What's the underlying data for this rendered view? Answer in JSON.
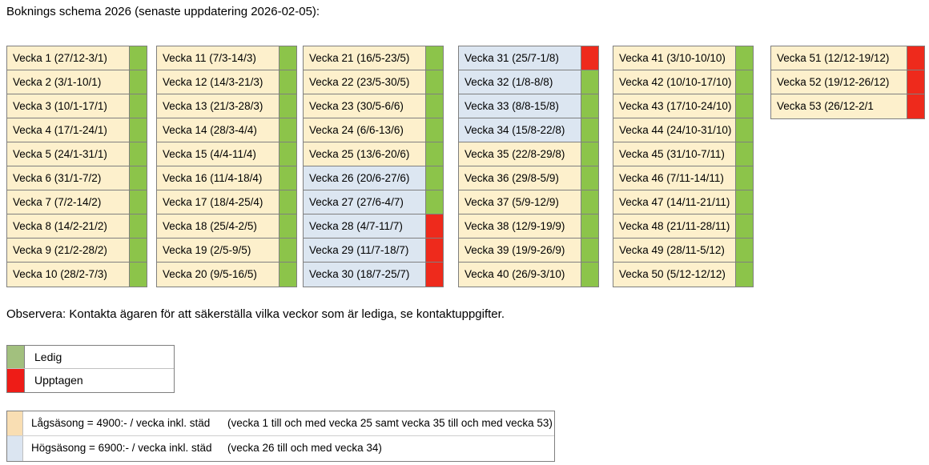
{
  "title": "Boknings schema 2026 (senaste uppdatering 2026-02-05):",
  "note": "Observera: Kontakta ägaren för att säkerställa vilka veckor som är lediga, se kontaktuppgifter.",
  "colors": {
    "ledig": "#8cc44a",
    "upptagen": "#ee2a1c",
    "lagsasong_cell": "#fdf0cc",
    "hogsasong_cell": "#dce6f1",
    "legend_ledig_swatch": "#a2c07e",
    "legend_upptagen_swatch": "#ee1c17",
    "lagsasong_swatch": "#f9deb3",
    "hogsasong_swatch": "#dbe5f1",
    "border_gray": "#7f7f7f"
  },
  "schedule": {
    "columns": [
      {
        "weeks": [
          {
            "label": "Vecka 1 (27/12-3/1)",
            "season": "lag",
            "status": "ledig"
          },
          {
            "label": "Vecka 2 (3/1-10/1)",
            "season": "lag",
            "status": "ledig"
          },
          {
            "label": "Vecka 3 (10/1-17/1)",
            "season": "lag",
            "status": "ledig"
          },
          {
            "label": "Vecka 4 (17/1-24/1)",
            "season": "lag",
            "status": "ledig"
          },
          {
            "label": "Vecka 5 (24/1-31/1)",
            "season": "lag",
            "status": "ledig"
          },
          {
            "label": "Vecka 6 (31/1-7/2)",
            "season": "lag",
            "status": "ledig"
          },
          {
            "label": "Vecka 7 (7/2-14/2)",
            "season": "lag",
            "status": "ledig"
          },
          {
            "label": "Vecka 8 (14/2-21/2)",
            "season": "lag",
            "status": "ledig"
          },
          {
            "label": "Vecka 9 (21/2-28/2)",
            "season": "lag",
            "status": "ledig"
          },
          {
            "label": "Vecka 10 (28/2-7/3)",
            "season": "lag",
            "status": "ledig"
          }
        ]
      },
      {
        "weeks": [
          {
            "label": "Vecka 11 (7/3-14/3)",
            "season": "lag",
            "status": "ledig"
          },
          {
            "label": "Vecka 12 (14/3-21/3)",
            "season": "lag",
            "status": "ledig"
          },
          {
            "label": "Vecka 13 (21/3-28/3)",
            "season": "lag",
            "status": "ledig"
          },
          {
            "label": "Vecka 14 (28/3-4/4)",
            "season": "lag",
            "status": "ledig"
          },
          {
            "label": "Vecka 15 (4/4-11/4)",
            "season": "lag",
            "status": "ledig"
          },
          {
            "label": "Vecka 16 (11/4-18/4)",
            "season": "lag",
            "status": "ledig"
          },
          {
            "label": "Vecka 17 (18/4-25/4)",
            "season": "lag",
            "status": "ledig"
          },
          {
            "label": "Vecka 18 (25/4-2/5)",
            "season": "lag",
            "status": "ledig"
          },
          {
            "label": "Vecka 19 (2/5-9/5)",
            "season": "lag",
            "status": "ledig"
          },
          {
            "label": "Vecka 20 (9/5-16/5)",
            "season": "lag",
            "status": "ledig"
          }
        ]
      },
      {
        "weeks": [
          {
            "label": "Vecka 21 (16/5-23/5)",
            "season": "lag",
            "status": "ledig"
          },
          {
            "label": "Vecka 22 (23/5-30/5)",
            "season": "lag",
            "status": "ledig"
          },
          {
            "label": "Vecka 23 (30/5-6/6)",
            "season": "lag",
            "status": "ledig"
          },
          {
            "label": "Vecka 24 (6/6-13/6)",
            "season": "lag",
            "status": "ledig"
          },
          {
            "label": "Vecka 25 (13/6-20/6)",
            "season": "lag",
            "status": "ledig"
          },
          {
            "label": "Vecka 26 (20/6-27/6)",
            "season": "hog",
            "status": "ledig"
          },
          {
            "label": "Vecka 27 (27/6-4/7)",
            "season": "hog",
            "status": "ledig"
          },
          {
            "label": "Vecka 28 (4/7-11/7)",
            "season": "hog",
            "status": "upptagen"
          },
          {
            "label": "Vecka 29 (11/7-18/7)",
            "season": "hog",
            "status": "upptagen"
          },
          {
            "label": "Vecka 30 (18/7-25/7)",
            "season": "hog",
            "status": "upptagen"
          }
        ]
      },
      {
        "weeks": [
          {
            "label": "Vecka 31 (25/7-1/8)",
            "season": "hog",
            "status": "upptagen"
          },
          {
            "label": "Vecka 32 (1/8-8/8)",
            "season": "hog",
            "status": "ledig"
          },
          {
            "label": "Vecka 33 (8/8-15/8)",
            "season": "hog",
            "status": "ledig"
          },
          {
            "label": "Vecka 34 (15/8-22/8)",
            "season": "hog",
            "status": "ledig"
          },
          {
            "label": "Vecka 35 (22/8-29/8)",
            "season": "lag",
            "status": "ledig"
          },
          {
            "label": "Vecka 36 (29/8-5/9)",
            "season": "lag",
            "status": "ledig"
          },
          {
            "label": "Vecka 37 (5/9-12/9)",
            "season": "lag",
            "status": "ledig"
          },
          {
            "label": "Vecka 38 (12/9-19/9)",
            "season": "lag",
            "status": "ledig"
          },
          {
            "label": "Vecka 39 (19/9-26/9)",
            "season": "lag",
            "status": "ledig"
          },
          {
            "label": "Vecka 40 (26/9-3/10)",
            "season": "lag",
            "status": "ledig"
          }
        ]
      },
      {
        "weeks": [
          {
            "label": "Vecka 41 (3/10-10/10)",
            "season": "lag",
            "status": "ledig"
          },
          {
            "label": "Vecka 42 (10/10-17/10)",
            "season": "lag",
            "status": "ledig"
          },
          {
            "label": "Vecka 43 (17/10-24/10)",
            "season": "lag",
            "status": "ledig"
          },
          {
            "label": "Vecka 44 (24/10-31/10)",
            "season": "lag",
            "status": "ledig"
          },
          {
            "label": "Vecka 45 (31/10-7/11)",
            "season": "lag",
            "status": "ledig"
          },
          {
            "label": "Vecka 46 (7/11-14/11)",
            "season": "lag",
            "status": "ledig"
          },
          {
            "label": "Vecka 47 (14/11-21/11)",
            "season": "lag",
            "status": "ledig"
          },
          {
            "label": "Vecka 48 (21/11-28/11)",
            "season": "lag",
            "status": "ledig"
          },
          {
            "label": "Vecka 49 (28/11-5/12)",
            "season": "lag",
            "status": "ledig"
          },
          {
            "label": "Vecka 50 (5/12-12/12)",
            "season": "lag",
            "status": "ledig"
          }
        ]
      },
      {
        "weeks": [
          {
            "label": "Vecka 51 (12/12-19/12)",
            "season": "lag",
            "status": "upptagen"
          },
          {
            "label": "Vecka 52 (19/12-26/12)",
            "season": "lag",
            "status": "upptagen"
          },
          {
            "label": "Vecka 53 (26/12-2/1",
            "season": "lag",
            "status": "upptagen"
          }
        ]
      }
    ]
  },
  "status_legend": [
    {
      "label": "Ledig",
      "status": "ledig"
    },
    {
      "label": "Upptagen",
      "status": "upptagen"
    }
  ],
  "season_legend": [
    {
      "season": "lag",
      "price": "Lågsäsong = 4900:- / vecka inkl. städ",
      "range": "(vecka 1 till och med vecka 25 samt vecka 35 till och med vecka 53)"
    },
    {
      "season": "hog",
      "price": "Högsäsong = 6900:- / vecka inkl. städ",
      "range": "(vecka 26 till och med vecka 34)"
    }
  ]
}
